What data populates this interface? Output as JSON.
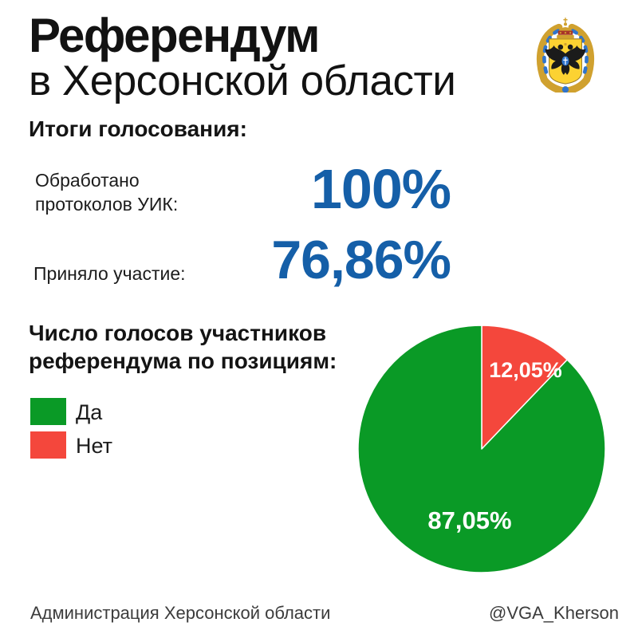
{
  "header": {
    "title_line1": "Референдум",
    "title_line2": "в Херсонской области",
    "emblem_icon": "kherson-oblast-coat-of-arms"
  },
  "colors": {
    "accent_blue": "#155fa8",
    "yes_green": "#0a9a26",
    "no_red": "#f4473c"
  },
  "results": {
    "heading": "Итоги голосования:",
    "row1": {
      "label_line1": "Обработано",
      "label_line2": "протоколов УИК:",
      "value": "100%"
    },
    "row2": {
      "label": "Приняло участие:",
      "value": "76,86%"
    }
  },
  "chart_section": {
    "heading_line1": "Число голосов участников",
    "heading_line2": "референдума по позициям:"
  },
  "chart_data": {
    "type": "pie",
    "title": "Число голосов участников референдума по позициям:",
    "start_angle_deg": 0,
    "direction": "clockwise",
    "legend_position": "left",
    "slices": [
      {
        "key": "no",
        "label": "Нет",
        "value": 12.05,
        "display": "12,05%",
        "color": "#f4473c"
      },
      {
        "key": "yes",
        "label": "Да",
        "value": 87.05,
        "display": "87,05%",
        "color": "#0a9a26"
      }
    ],
    "legend": [
      {
        "label": "Да",
        "color": "#0a9a26"
      },
      {
        "label": "Нет",
        "color": "#f4473c"
      }
    ]
  },
  "footer": {
    "left": "Администрация Херсонской области",
    "right": "@VGA_Kherson"
  }
}
